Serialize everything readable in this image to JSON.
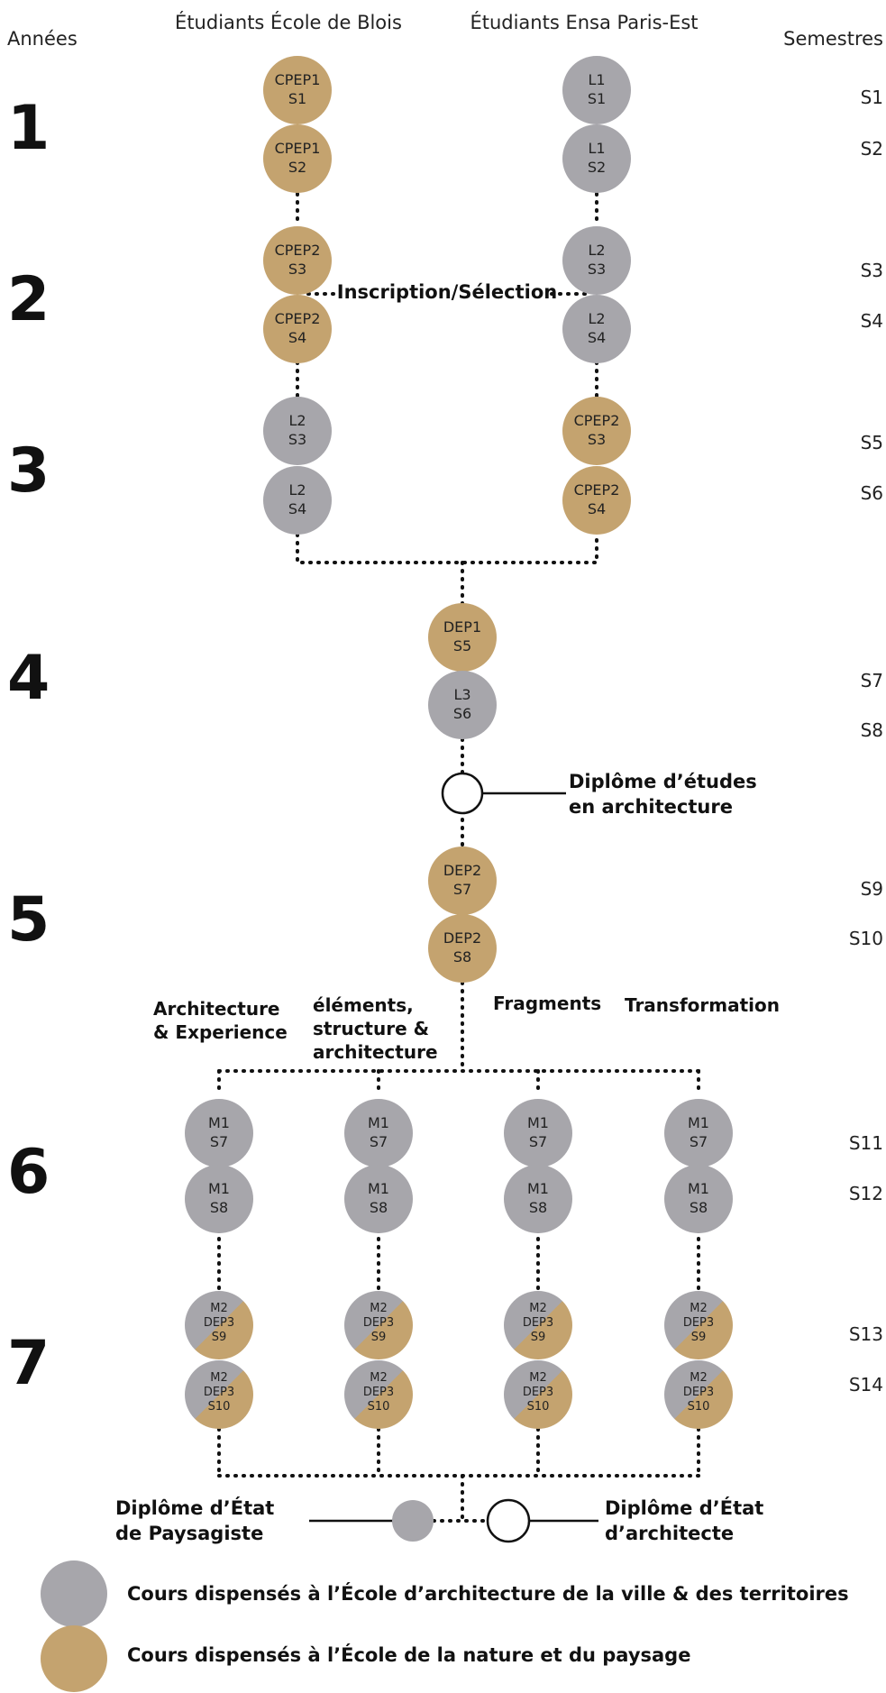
{
  "colors": {
    "grey": "#a7a6ab",
    "gold": "#c4a36f",
    "line": "#111111"
  },
  "header": {
    "years": "Années",
    "blois": "Étudiants École de Blois",
    "paris": "Étudiants Ensa Paris-Est",
    "semesters": "Semestres"
  },
  "years": [
    "1",
    "2",
    "3",
    "4",
    "5",
    "6",
    "7"
  ],
  "semesters": [
    "S1",
    "S2",
    "S3",
    "S4",
    "S5",
    "S6",
    "S7",
    "S8",
    "S9",
    "S10",
    "S11",
    "S12",
    "S13",
    "S14"
  ],
  "nodes": {
    "blois": [
      {
        "l1": "CPEP1",
        "l2": "S1",
        "color": "gold"
      },
      {
        "l1": "CPEP1",
        "l2": "S2",
        "color": "gold"
      },
      {
        "l1": "CPEP2",
        "l2": "S3",
        "color": "gold"
      },
      {
        "l1": "CPEP2",
        "l2": "S4",
        "color": "gold"
      },
      {
        "l1": "L2",
        "l2": "S3",
        "color": "grey"
      },
      {
        "l1": "L2",
        "l2": "S4",
        "color": "grey"
      }
    ],
    "paris": [
      {
        "l1": "L1",
        "l2": "S1",
        "color": "grey"
      },
      {
        "l1": "L1",
        "l2": "S2",
        "color": "grey"
      },
      {
        "l1": "L2",
        "l2": "S3",
        "color": "grey"
      },
      {
        "l1": "L2",
        "l2": "S4",
        "color": "grey"
      },
      {
        "l1": "CPEP2",
        "l2": "S3",
        "color": "gold"
      },
      {
        "l1": "CPEP2",
        "l2": "S4",
        "color": "gold"
      }
    ],
    "common": [
      {
        "l1": "DEP1",
        "l2": "S5",
        "color": "gold"
      },
      {
        "l1": "L3",
        "l2": "S6",
        "color": "grey"
      },
      {
        "l1": "DEP2",
        "l2": "S7",
        "color": "gold"
      },
      {
        "l1": "DEP2",
        "l2": "S8",
        "color": "gold"
      }
    ],
    "master1": [
      {
        "l1": "M1",
        "l2": "S7"
      },
      {
        "l1": "M1",
        "l2": "S8"
      }
    ],
    "master2": [
      {
        "l1": "M2",
        "l2": "DEP3",
        "l3": "S9"
      },
      {
        "l1": "M2",
        "l2": "DEP3",
        "l3": "S10"
      }
    ]
  },
  "labels": {
    "inscription": "Inscription/Sélection",
    "dea_line1": "Diplôme d’études",
    "dea_line2": "en architecture",
    "paysagiste_line1": "Diplôme d’État",
    "paysagiste_line2": "de Paysagiste",
    "architecte_line1": "Diplôme d’État",
    "architecte_line2": "d’architecte"
  },
  "tracks": [
    {
      "lines": [
        "Architecture",
        "& Experience"
      ]
    },
    {
      "lines": [
        "éléments,",
        "structure &",
        "architecture"
      ]
    },
    {
      "lines": [
        "Fragments"
      ]
    },
    {
      "lines": [
        "Transformation"
      ]
    }
  ],
  "legend": [
    {
      "color": "grey",
      "text": "Cours dispensés à l’École d’architecture de la ville & des territoires"
    },
    {
      "color": "gold",
      "text": "Cours dispensés à l’École de la nature et du paysage"
    }
  ]
}
